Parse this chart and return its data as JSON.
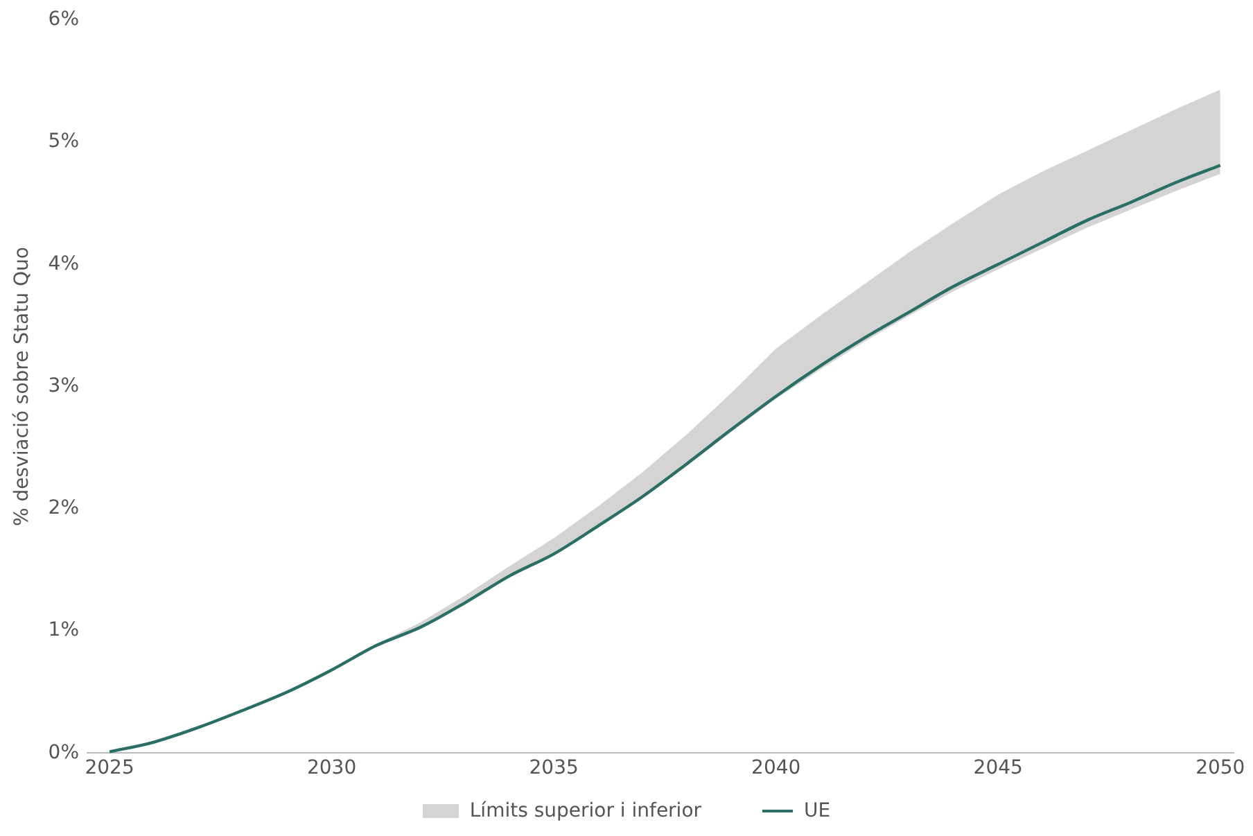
{
  "chart_data": {
    "type": "line",
    "ylabel": "% desviació sobre Statu Quo",
    "annotations": [
      "Límits superior i inferior"
    ],
    "x": [
      2025,
      2026,
      2027,
      2028,
      2029,
      2030,
      2031,
      2032,
      2033,
      2034,
      2035,
      2036,
      2037,
      2038,
      2039,
      2040,
      2041,
      2042,
      2043,
      2044,
      2045,
      2046,
      2047,
      2048,
      2049,
      2050
    ],
    "series": [
      {
        "name": "UE",
        "type": "line",
        "color": "#2a6e66",
        "values": [
          0.01,
          0.09,
          0.21,
          0.35,
          0.5,
          0.68,
          0.88,
          1.03,
          1.23,
          1.45,
          1.63,
          1.86,
          2.1,
          2.37,
          2.65,
          2.92,
          3.17,
          3.4,
          3.61,
          3.82,
          4.0,
          4.18,
          4.36,
          4.51,
          4.67,
          4.81
        ],
        "lower": [
          0.01,
          0.09,
          0.21,
          0.35,
          0.5,
          0.68,
          0.87,
          1.02,
          1.22,
          1.44,
          1.62,
          1.85,
          2.09,
          2.35,
          2.63,
          2.9,
          3.14,
          3.37,
          3.58,
          3.78,
          3.96,
          4.13,
          4.3,
          4.45,
          4.6,
          4.74
        ],
        "upper": [
          0.01,
          0.09,
          0.21,
          0.35,
          0.5,
          0.68,
          0.89,
          1.07,
          1.29,
          1.53,
          1.76,
          2.02,
          2.3,
          2.61,
          2.95,
          3.31,
          3.58,
          3.84,
          4.1,
          4.34,
          4.57,
          4.76,
          4.93,
          5.1,
          5.27,
          5.43
        ]
      }
    ],
    "xlim": [
      2024.5,
      2050.3
    ],
    "xticks": [
      2025,
      2030,
      2035,
      2040,
      2045,
      2050
    ],
    "ylim": [
      0,
      6
    ],
    "yticks": [
      {
        "value": 0,
        "label": "0%"
      },
      {
        "value": 1,
        "label": "1%"
      },
      {
        "value": 2,
        "label": "2%"
      },
      {
        "value": 3,
        "label": "3%"
      },
      {
        "value": 4,
        "label": "4%"
      },
      {
        "value": 5,
        "label": "5%"
      },
      {
        "value": 6,
        "label": "6%"
      }
    ],
    "grid": false,
    "legend": "bottom",
    "marker": "none",
    "line_style": "solid"
  }
}
